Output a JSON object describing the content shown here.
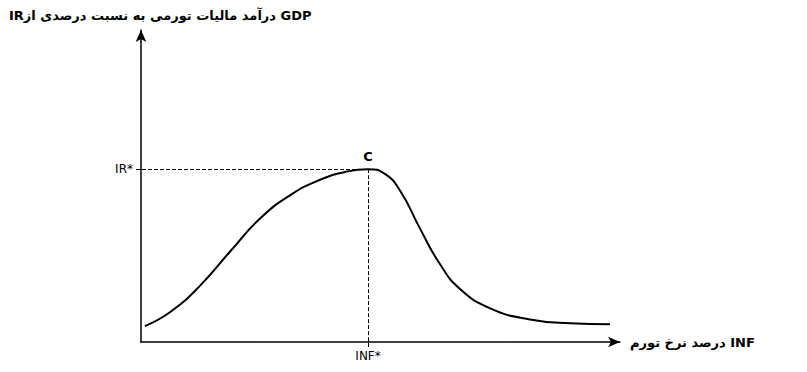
{
  "chart_data": {
    "type": "line",
    "x_label": "درصد نرخ تورم INF",
    "y_label": "IRدرآمد مالیات تورمی به نسبت درصدی از GDP",
    "x": [
      0.8,
      6.1,
      12.3,
      18.6,
      24.8,
      31.1,
      37.4,
      42.6,
      47.4,
      50.9,
      54.1,
      58.2,
      62.4,
      66.6,
      72.9,
      81.2,
      89.6,
      97.9
    ],
    "values": [
      5.1,
      9.6,
      18,
      29,
      39.5,
      47,
      52,
      54.5,
      55.4,
      53.9,
      48.5,
      36.5,
      25,
      17,
      10.8,
      7.2,
      6,
      5.7
    ],
    "color": "#000000",
    "marker": "none",
    "xlim": [
      0,
      100
    ],
    "ylim": [
      0,
      100
    ],
    "xticks": [
      {
        "value": 47.4,
        "label": "INF*"
      }
    ],
    "yticks": [
      {
        "value": 55.4,
        "label": "IR*"
      }
    ],
    "grid": false,
    "annotations": [
      {
        "text": "C",
        "x": 47.4,
        "y": 55.4
      }
    ]
  }
}
